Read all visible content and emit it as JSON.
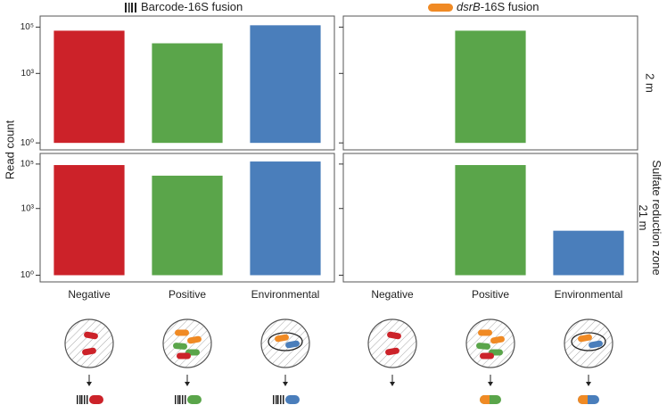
{
  "y_label": "Read count",
  "column_titles": [
    [
      {
        "text": "Barcode-16S fusion"
      }
    ],
    [
      {
        "text": "dsrB",
        "italic": true
      },
      {
        "text": "-16S fusion"
      }
    ]
  ],
  "row_labels": [
    [
      "2 m"
    ],
    [
      "21 m",
      "Sulfate reduction zone"
    ]
  ],
  "chart_data": [
    {
      "type": "bar",
      "log_y": true,
      "colors": [
        "#cc2229",
        "#5aa54a",
        "#4a7ebb"
      ],
      "values": [
        70000,
        20000,
        120000
      ],
      "ylim": [
        0.5,
        300000
      ],
      "yticks": [
        {
          "value": 1,
          "label": "10⁰"
        },
        {
          "value": 1000,
          "label": "10³"
        },
        {
          "value": 100000,
          "label": "10⁵"
        }
      ]
    },
    {
      "type": "bar",
      "log_y": true,
      "colors": [
        "#cc2229",
        "#5aa54a",
        "#4a7ebb"
      ],
      "values": [
        null,
        70000,
        null
      ],
      "ylim": [
        0.5,
        300000
      ],
      "yticks": [
        1,
        1000,
        100000
      ]
    },
    {
      "type": "bar",
      "log_y": true,
      "colors": [
        "#cc2229",
        "#5aa54a",
        "#4a7ebb"
      ],
      "categories": [
        "Negative",
        "Positive",
        "Environmental"
      ],
      "values": [
        90000,
        30000,
        130000
      ],
      "ylim": [
        0.5,
        300000
      ],
      "yticks": [
        {
          "value": 1,
          "label": "10⁰"
        },
        {
          "value": 1000,
          "label": "10³"
        },
        {
          "value": 100000,
          "label": "10⁵"
        }
      ]
    },
    {
      "type": "bar",
      "log_y": true,
      "colors": [
        "#cc2229",
        "#5aa54a",
        "#4a7ebb"
      ],
      "categories": [
        "Negative",
        "Positive",
        "Environmental"
      ],
      "values": [
        null,
        90000,
        100
      ],
      "ylim": [
        0.5,
        300000
      ],
      "yticks": [
        1,
        1000,
        100000
      ]
    }
  ]
}
